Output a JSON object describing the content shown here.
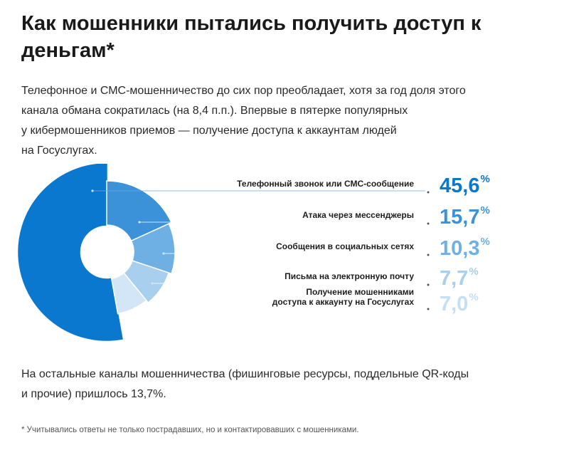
{
  "title_lines": [
    "Как мошенники пытались получить доступ к",
    "деньгам*"
  ],
  "intro_lines": [
    "Телефонное и СМС-мошенничество до сих пор преобладает, хотя за год доля этого",
    "канала обмана сократилась (на 8,4 п.п.). Впервые в пятерке популярных",
    "у кибермошенников приемов — получение доступа к аккаунтам людей",
    "на Госуслугах."
  ],
  "outro_lines": [
    "На остальные каналы мошенничества (фишинговые ресурсы, поддельные QR-коды",
    "и прочие) пришлось 13,7%."
  ],
  "footnote": "* Учитывались ответы не только пострадавших, но и контактировавших с мошенниками.",
  "chart_data": {
    "type": "pie",
    "variant": "donut",
    "categories": [
      "Телефонный звонок или СМС-сообщение",
      "Атака через мессенджеры",
      "Сообщения в социальных сетях",
      "Письма на электронную почту",
      "Получение мошенниками доступа к аккаунту на Госуслугах"
    ],
    "label_lines": [
      [
        "Телефонный звонок или СМС-сообщение"
      ],
      [
        "Атака через мессенджеры"
      ],
      [
        "Сообщения в социальных сетях"
      ],
      [
        "Письма на электронную почту"
      ],
      [
        "Получение мошенниками",
        "доступа к аккаунту на Госуслугах"
      ]
    ],
    "values": [
      45.6,
      15.7,
      10.3,
      7.7,
      7.0
    ],
    "value_labels": [
      "45,6",
      "15,7",
      "10,3",
      "7,7",
      "7,0"
    ],
    "unit": "%",
    "colors": [
      "#0a78cf",
      "#3b92d8",
      "#6eb0e4",
      "#a8cfee",
      "#d2e6f7"
    ],
    "value_colors": [
      "#0a78cf",
      "#3b92d8",
      "#6eb0e4",
      "#a8cfee",
      "#c4def4"
    ],
    "slice_borders": [
      "#0a78cf",
      "#ffffff",
      "#ffffff",
      "#ffffff",
      "#ffffff"
    ],
    "xlabel": "",
    "ylabel": ""
  }
}
